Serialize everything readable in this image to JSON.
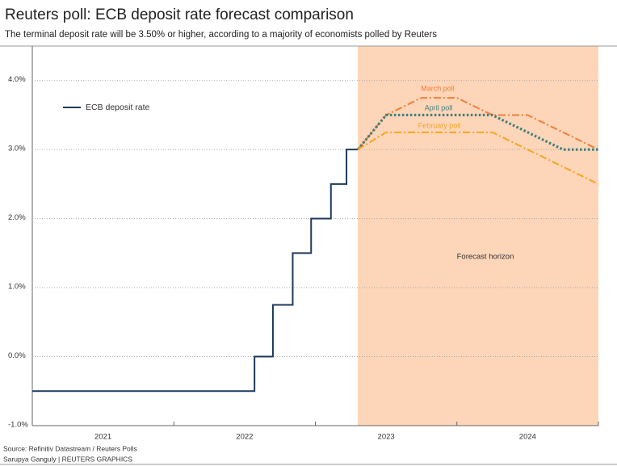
{
  "chart_data": {
    "type": "line",
    "title": "Reuters poll: ECB deposit rate forecast comparison",
    "subtitle": "The terminal deposit rate will be 3.50% or higher, according to a majority of economists polled by Reuters",
    "source": [
      "Source: Refinitiv Datastream / Reuters Polls",
      "Sarupya Ganguly | REUTERS GRAPHICS"
    ],
    "xlim": [
      2021,
      2025
    ],
    "xticks": [
      2021,
      2022,
      2023,
      2024,
      2025
    ],
    "xtick_labels": [
      {
        "value": 2021.5,
        "label": "2021"
      },
      {
        "value": 2022.5,
        "label": "2022"
      },
      {
        "value": 2023.5,
        "label": "2023"
      },
      {
        "value": 2024.5,
        "label": "2024"
      }
    ],
    "ylim": [
      -1,
      4.5
    ],
    "yticks": [
      {
        "value": -1,
        "label": "-1.0%"
      },
      {
        "value": 0,
        "label": "0.0%"
      },
      {
        "value": 1,
        "label": "1.0%"
      },
      {
        "value": 2,
        "label": "2.0%"
      },
      {
        "value": 3,
        "label": "3.0%"
      },
      {
        "value": 4,
        "label": "4.0%"
      }
    ],
    "grid": true,
    "shade": {
      "x": [
        2023.3,
        2025
      ],
      "label": "Forecast horizon",
      "color": "#fdd5b8"
    },
    "series": [
      {
        "name": "ECB deposit rate",
        "color": "#1d3a5c",
        "style": "solid",
        "x": [
          2021,
          2022.57,
          2022.57,
          2022.7,
          2022.7,
          2022.84,
          2022.84,
          2022.97,
          2022.97,
          2023.11,
          2023.11,
          2023.22,
          2023.22,
          2023.3
        ],
        "values": [
          -0.5,
          -0.5,
          0,
          0,
          0.75,
          0.75,
          1.5,
          1.5,
          2,
          2,
          2.5,
          2.5,
          3,
          3
        ]
      },
      {
        "name": "March poll",
        "color": "#f07f3c",
        "style": "dashdot",
        "x": [
          2023.3,
          2023.5,
          2023.75,
          2024,
          2024.25,
          2024.5,
          2024.75,
          2025
        ],
        "values": [
          3,
          3.5,
          3.75,
          3.75,
          3.5,
          3.5,
          3.25,
          3
        ]
      },
      {
        "name": "April poll",
        "color": "#3f7f7a",
        "style": "dotted",
        "x": [
          2023.3,
          2023.5,
          2023.75,
          2024,
          2024.25,
          2024.5,
          2024.75,
          2025
        ],
        "values": [
          3,
          3.5,
          3.5,
          3.5,
          3.5,
          3.25,
          3,
          3
        ]
      },
      {
        "name": "February poll",
        "color": "#f5a623",
        "style": "dashdot",
        "x": [
          2023.3,
          2023.5,
          2023.75,
          2024,
          2024.25,
          2024.5,
          2024.75,
          2025
        ],
        "values": [
          3,
          3.25,
          3.25,
          3.25,
          3.25,
          3,
          2.75,
          2.5
        ]
      }
    ]
  }
}
